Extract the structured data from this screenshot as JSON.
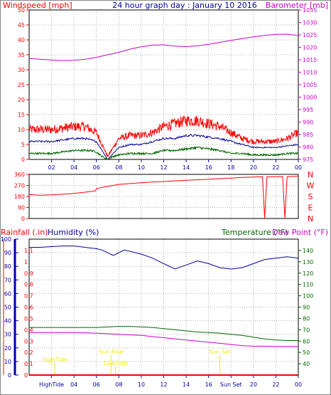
{
  "header": {
    "left_label": "Windspeed [mph]",
    "title": "24 hour graph day : January 10 2016",
    "right_label": "Barometer [mb]"
  },
  "panel3_labels": {
    "rainfall": "Rainfall (.in)",
    "humidity": "Humidity (%)",
    "temperature": "Temperature (°F)",
    "dewpoint": "Dew Point (°F)"
  },
  "colors": {
    "red": "#ff0000",
    "blue": "#000099",
    "green": "#006600",
    "magenta": "#cc00cc",
    "axis_blue": "#0000aa",
    "yellow": "#eeee00",
    "grid": "#b0b0b0"
  },
  "chart_data": [
    {
      "type": "line",
      "title": "24 hour graph day : January 10 2016",
      "xlabel": "",
      "x_ticks": [
        "02",
        "04",
        "06",
        "08",
        "10",
        "12",
        "14",
        "16",
        "18",
        "20",
        "22",
        "00"
      ],
      "xlim": [
        0,
        24
      ],
      "ylim_left": [
        0,
        50
      ],
      "y_ticks_left": [
        0,
        5,
        10,
        15,
        20,
        25,
        30,
        35,
        40,
        45,
        50
      ],
      "ylim_right": [
        975,
        1035
      ],
      "y_ticks_right": [
        975,
        980,
        985,
        990,
        995,
        1000,
        1005,
        1010,
        1015,
        1020,
        1025,
        1030,
        1035
      ],
      "series": [
        {
          "name": "Windspeed [mph]",
          "axis": "left",
          "color": "#ff0000",
          "x": [
            0,
            1,
            2,
            3,
            4,
            5,
            5.5,
            6,
            6.5,
            7,
            7.5,
            8,
            9,
            10,
            11,
            12,
            13,
            14,
            15,
            16,
            17,
            18,
            19,
            20,
            21,
            22,
            23,
            24
          ],
          "y": [
            10,
            10,
            10,
            10.5,
            11,
            11,
            10,
            9,
            5,
            1,
            4,
            7,
            8,
            8,
            9,
            11,
            12,
            13,
            13,
            12,
            11,
            9,
            7,
            6,
            6,
            6,
            7,
            9
          ]
        },
        {
          "axis": "left",
          "color": "#000099",
          "x": [
            0,
            1,
            2,
            3,
            4,
            5,
            5.5,
            6,
            6.5,
            7,
            7.5,
            8,
            9,
            10,
            11,
            12,
            13,
            14,
            15,
            16,
            17,
            18,
            19,
            20,
            21,
            22,
            23,
            24
          ],
          "y": [
            6,
            6,
            6,
            6.5,
            7,
            7,
            6.5,
            6,
            3,
            0,
            2,
            4,
            5,
            5,
            6,
            7,
            7,
            8,
            8,
            7.5,
            7,
            6,
            5,
            4,
            4,
            4,
            4.5,
            5
          ]
        },
        {
          "axis": "left",
          "color": "#006600",
          "x": [
            0,
            1,
            2,
            3,
            4,
            5,
            5.5,
            6,
            6.5,
            7,
            7.5,
            8,
            9,
            10,
            11,
            12,
            13,
            14,
            15,
            16,
            17,
            18,
            19,
            20,
            21,
            22,
            23,
            24
          ],
          "y": [
            2,
            2,
            2,
            2.5,
            3,
            3,
            3,
            2.5,
            1,
            0,
            1,
            1.5,
            2,
            2,
            2,
            3,
            3,
            3.5,
            4,
            3.5,
            3,
            2,
            2,
            1.5,
            1.5,
            1.5,
            2,
            2
          ]
        },
        {
          "name": "Barometer [mb]",
          "axis": "right",
          "color": "#cc00cc",
          "x": [
            0,
            1,
            2,
            3,
            4,
            5,
            6,
            7,
            8,
            9,
            10,
            11,
            12,
            13,
            14,
            15,
            16,
            17,
            18,
            19,
            20,
            21,
            22,
            23,
            24
          ],
          "y": [
            1015.5,
            1015.2,
            1014.9,
            1014.7,
            1014.8,
            1015.2,
            1016,
            1017,
            1018,
            1019.3,
            1020.2,
            1020.9,
            1021,
            1020.5,
            1020.3,
            1020.6,
            1021.2,
            1022,
            1022.8,
            1023.5,
            1024.2,
            1024.8,
            1025.2,
            1025.3,
            1024.7
          ]
        }
      ]
    },
    {
      "type": "line",
      "title": "",
      "x_ticks": [
        "02",
        "04",
        "06",
        "08",
        "10",
        "12",
        "14",
        "16",
        "18",
        "20",
        "22",
        "00"
      ],
      "xlim": [
        0,
        24
      ],
      "ylim": [
        0,
        360
      ],
      "y_ticks": [
        0,
        90,
        180,
        270,
        360
      ],
      "right_labels": [
        "N",
        "W",
        "S",
        "E",
        "N"
      ],
      "series": [
        {
          "name": "Wind direction",
          "color": "#ff0000",
          "x": [
            0,
            1,
            2,
            3,
            4,
            5,
            5.9,
            6,
            7,
            8,
            9,
            10,
            11,
            12,
            13,
            14,
            15,
            16,
            17,
            18,
            19,
            20,
            20.8,
            21,
            21.2,
            22,
            22.6,
            22.8,
            23,
            24
          ],
          "y": [
            195,
            190,
            193,
            198,
            205,
            215,
            225,
            245,
            262,
            278,
            285,
            292,
            298,
            302,
            307,
            312,
            316,
            320,
            325,
            330,
            335,
            338,
            340,
            0,
            340,
            340,
            342,
            0,
            340,
            345
          ]
        }
      ]
    },
    {
      "type": "line",
      "title": "",
      "x_ticks": [
        "HighTide",
        "04",
        "06",
        "08",
        "10",
        "12",
        "14",
        "16",
        "Sun Set",
        "20",
        "22",
        "00"
      ],
      "xlim": [
        0,
        24
      ],
      "ylim_humidity": [
        0,
        100
      ],
      "y_ticks_humidity": [
        0,
        10,
        20,
        30,
        40,
        50,
        60,
        70,
        80,
        90,
        100
      ],
      "ylim_rain": [
        0,
        1.2
      ],
      "y_ticks_rain": [
        0,
        0.1,
        0.2,
        0.3,
        0.4,
        0.5,
        0.6,
        0.7,
        0.8,
        0.9,
        1,
        1.1
      ],
      "ylim_temp": [
        30,
        150
      ],
      "y_ticks_temp": [
        40,
        50,
        60,
        70,
        80,
        90,
        100,
        110,
        120,
        130,
        140
      ],
      "annotations": [
        {
          "text": "HighTide",
          "x": 2.3
        },
        {
          "text": "Sun Rise",
          "x": 7.3
        },
        {
          "text": "LowTide",
          "x": 7.7
        },
        {
          "text": "Sun Set",
          "x": 17.0
        }
      ],
      "series": [
        {
          "name": "Humidity (%)",
          "axis": "humidity",
          "color": "#000099",
          "x": [
            0,
            1,
            2,
            3,
            4,
            5,
            6,
            6.5,
            7,
            7.5,
            8,
            8.5,
            9,
            10,
            11,
            12,
            12.5,
            13,
            14,
            15,
            16,
            17,
            18,
            19,
            20,
            21,
            22,
            23,
            24
          ],
          "y": [
            94,
            94,
            94.5,
            95,
            95,
            94,
            93,
            92,
            90,
            88,
            90,
            92,
            91,
            89,
            86,
            82,
            80,
            78,
            81,
            84,
            82,
            79,
            78,
            79,
            82,
            85,
            86,
            87,
            86
          ]
        },
        {
          "name": "Temperature (°F)",
          "axis": "temp",
          "color": "#006600",
          "x": [
            0,
            2,
            4,
            6,
            7,
            8,
            9,
            10,
            11,
            12,
            13,
            14,
            15,
            16,
            17,
            18,
            19,
            20,
            21,
            22,
            23,
            24
          ],
          "y": [
            72,
            72,
            72,
            72,
            72.5,
            73,
            73,
            72.5,
            72,
            71,
            70,
            69,
            68,
            67.5,
            67,
            66,
            65,
            63.5,
            62,
            61,
            60.5,
            60.5
          ]
        },
        {
          "name": "Dew Point (°F)",
          "axis": "temp",
          "color": "#cc00cc",
          "x": [
            0,
            2,
            4,
            6,
            7,
            8,
            9,
            10,
            11,
            12,
            13,
            14,
            15,
            16,
            17,
            18,
            19,
            20,
            21,
            22,
            23,
            24
          ],
          "y": [
            67.5,
            67.5,
            67.5,
            67,
            66.5,
            66,
            65.5,
            65,
            64,
            63,
            62,
            61,
            60,
            59,
            58,
            57,
            56,
            55.5,
            55.5,
            55.3,
            55.3,
            55.3
          ]
        },
        {
          "name": "Rainfall (.in)",
          "axis": "rain",
          "color": "#ff0000",
          "x": [
            0,
            24
          ],
          "y": [
            0,
            0
          ]
        }
      ]
    }
  ]
}
